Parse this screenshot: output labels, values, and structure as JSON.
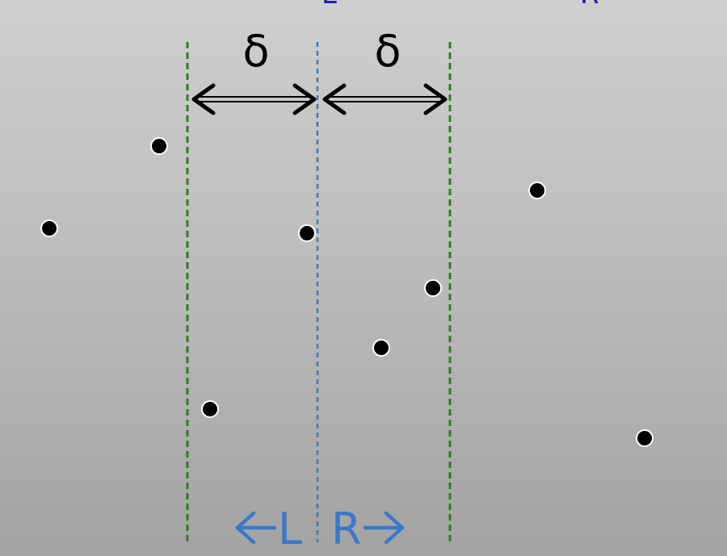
{
  "diagram": {
    "delta_symbol": "δ",
    "left_region_label": "L",
    "right_region_label": "R",
    "top_fragment_left": "L",
    "top_fragment_right": "R",
    "colors": {
      "outer_lines": "#2e7d1f",
      "center_line": "#3a78c9",
      "labels": "#3a78c9",
      "top_fragment": "#1a1aa6",
      "points": "#000000",
      "arrows": "#000000"
    }
  }
}
